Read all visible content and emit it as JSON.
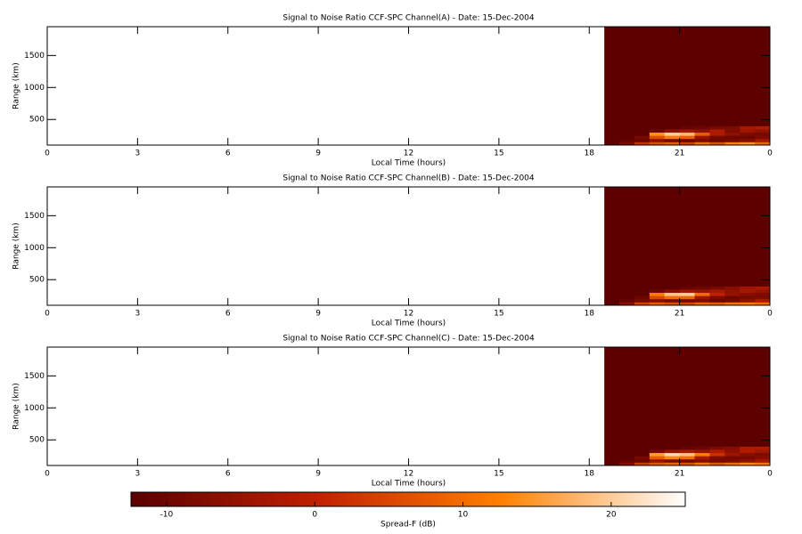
{
  "chart_data": [
    {
      "type": "heatmap",
      "title": "Signal to Noise Ratio CCF-SPC Channel(A) - Date: 15-Dec-2004",
      "x_label": "Local Time (hours)",
      "y_label": "Range (km)",
      "xlim": [
        0,
        24
      ],
      "xticks": [
        0,
        3,
        6,
        9,
        12,
        15,
        18,
        21,
        {
          "value": 24,
          "label": "0"
        }
      ],
      "ylim": [
        100,
        1950
      ],
      "yticks": [
        500,
        1000,
        1500
      ],
      "x_edges": [
        18.5,
        19,
        19.5,
        20,
        20.5,
        21,
        21.5,
        22,
        22.5,
        23,
        23.5,
        24
      ],
      "y_edges": [
        100,
        150,
        200,
        250,
        300,
        350,
        400,
        1950
      ],
      "z": [
        [
          -12,
          -8,
          2,
          6,
          8,
          4,
          10,
          6,
          12,
          14,
          9
        ],
        [
          -12,
          -11,
          -10,
          -6,
          -9,
          -10,
          -8,
          -10,
          -9,
          -7,
          -3
        ],
        [
          -12,
          -12,
          -9,
          6,
          12,
          8,
          -5,
          -9,
          -10,
          -10,
          -8
        ],
        [
          -12,
          -12,
          -12,
          14,
          20,
          18,
          8,
          -2,
          -6,
          -8,
          -9
        ],
        [
          -12,
          -12,
          -12,
          -10,
          -6,
          -4,
          -6,
          -2,
          -8,
          -4,
          -6
        ],
        [
          -12,
          -12,
          -12,
          -12,
          -12,
          -11,
          -10,
          -9,
          -8,
          -3,
          -2
        ],
        [
          -12,
          -12,
          -12,
          -12,
          -12,
          -12,
          -12,
          -12,
          -12,
          -12,
          -12
        ]
      ]
    },
    {
      "type": "heatmap",
      "title": "Signal to Noise Ratio CCF-SPC Channel(B) - Date: 15-Dec-2004",
      "x_label": "Local Time (hours)",
      "y_label": "Range (km)",
      "xlim": [
        0,
        24
      ],
      "xticks": [
        0,
        3,
        6,
        9,
        12,
        15,
        18,
        21,
        {
          "value": 24,
          "label": "0"
        }
      ],
      "ylim": [
        100,
        1950
      ],
      "yticks": [
        500,
        1000,
        1500
      ],
      "x_edges": [
        18.5,
        19,
        19.5,
        20,
        20.5,
        21,
        21.5,
        22,
        22.5,
        23,
        23.5,
        24
      ],
      "y_edges": [
        100,
        150,
        200,
        250,
        300,
        350,
        400,
        1950
      ],
      "z": [
        [
          -12,
          -6,
          4,
          8,
          6,
          5,
          9,
          8,
          11,
          12,
          10
        ],
        [
          -12,
          -11,
          -9,
          -7,
          -9,
          -9,
          -8,
          -10,
          -9,
          -6,
          -2
        ],
        [
          -12,
          -12,
          -10,
          5,
          10,
          9,
          -4,
          -8,
          -10,
          -9,
          -8
        ],
        [
          -12,
          -12,
          -12,
          12,
          19,
          20,
          10,
          0,
          -5,
          -7,
          -8
        ],
        [
          -12,
          -12,
          -12,
          -10,
          -7,
          -4,
          -5,
          -3,
          -6,
          -3,
          -5
        ],
        [
          -12,
          -12,
          -12,
          -12,
          -12,
          -11,
          -10,
          -9,
          -7,
          -4,
          -3
        ],
        [
          -12,
          -12,
          -12,
          -12,
          -12,
          -12,
          -12,
          -12,
          -12,
          -12,
          -12
        ]
      ]
    },
    {
      "type": "heatmap",
      "title": "Signal to Noise Ratio CCF-SPC Channel(C) - Date: 15-Dec-2004",
      "x_label": "Local Time (hours)",
      "y_label": "Range (km)",
      "xlim": [
        0,
        24
      ],
      "xticks": [
        0,
        3,
        6,
        9,
        12,
        15,
        18,
        21,
        {
          "value": 24,
          "label": "0"
        }
      ],
      "ylim": [
        100,
        1950
      ],
      "yticks": [
        500,
        1000,
        1500
      ],
      "x_edges": [
        18.5,
        19,
        19.5,
        20,
        20.5,
        21,
        21.5,
        22,
        22.5,
        23,
        23.5,
        24
      ],
      "y_edges": [
        100,
        150,
        200,
        250,
        300,
        350,
        400,
        1950
      ],
      "z": [
        [
          -12,
          -7,
          3,
          7,
          9,
          6,
          11,
          7,
          10,
          13,
          11
        ],
        [
          -12,
          -11,
          -10,
          -5,
          -8,
          -9,
          -7,
          -9,
          -8,
          -6,
          -3
        ],
        [
          -12,
          -12,
          -9,
          8,
          13,
          10,
          -3,
          -8,
          -9,
          -9,
          -7
        ],
        [
          -12,
          -12,
          -12,
          15,
          21,
          19,
          12,
          2,
          -4,
          -7,
          -8
        ],
        [
          -12,
          -12,
          -12,
          -9,
          -5,
          -3,
          -5,
          -2,
          -6,
          -2,
          -4
        ],
        [
          -12,
          -12,
          -12,
          -12,
          -12,
          -11,
          -10,
          -8,
          -7,
          -2,
          -2
        ],
        [
          -12,
          -12,
          -12,
          -12,
          -12,
          -12,
          -12,
          -12,
          -12,
          -12,
          -12
        ]
      ]
    }
  ],
  "colorbar": {
    "label": "Spread-F (dB)",
    "zlim": [
      -12.4,
      25
    ],
    "ticks": [
      -10,
      0,
      10,
      20
    ],
    "colormap": [
      "#5a0000",
      "#c02000",
      "#ff8000",
      "#ffffff"
    ]
  }
}
